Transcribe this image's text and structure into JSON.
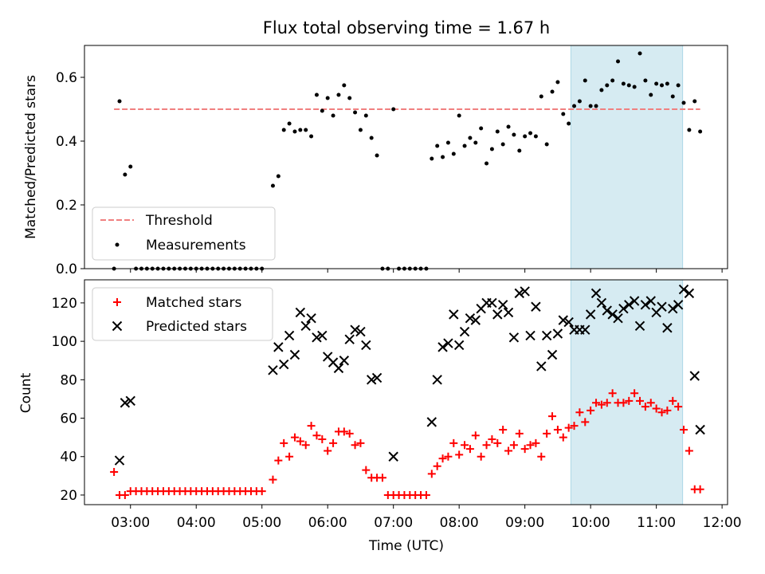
{
  "figure": {
    "title": "Flux total observing time = 1.67 h"
  },
  "colors": {
    "threshold": "#f08080",
    "measurement": "#000000",
    "matched": "#ff0000",
    "predicted": "#000000",
    "highlight": "#add8e6"
  },
  "chart_data": [
    {
      "type": "scatter",
      "ylabel": "Matched/Predicted stars",
      "ylim": [
        0,
        0.7
      ],
      "yticks": [
        "0.0",
        "0.2",
        "0.4",
        "0.6"
      ],
      "xlim": [
        "02:18",
        "12:05"
      ],
      "legend": {
        "placement": "lower-left",
        "entries": [
          "Threshold",
          "Measurements"
        ]
      },
      "highlight_range": [
        "09:42",
        "11:24"
      ],
      "series": [
        {
          "name": "Threshold",
          "kind": "dashed-line",
          "x": [
            "02:45",
            "11:40"
          ],
          "y": [
            0.5,
            0.5
          ]
        },
        {
          "name": "Measurements",
          "kind": "dots",
          "x": [
            "02:45",
            "02:50",
            "02:55",
            "03:00",
            "03:05",
            "03:10",
            "03:15",
            "03:20",
            "03:25",
            "03:30",
            "03:35",
            "03:40",
            "03:45",
            "03:50",
            "03:55",
            "04:00",
            "04:05",
            "04:10",
            "04:15",
            "04:20",
            "04:25",
            "04:30",
            "04:35",
            "04:40",
            "04:45",
            "04:50",
            "04:55",
            "05:00",
            "05:10",
            "05:15",
            "05:20",
            "05:25",
            "05:30",
            "05:35",
            "05:40",
            "05:45",
            "05:50",
            "05:55",
            "06:00",
            "06:05",
            "06:10",
            "06:15",
            "06:20",
            "06:25",
            "06:30",
            "06:35",
            "06:40",
            "06:45",
            "06:50",
            "06:55",
            "07:00",
            "07:05",
            "07:10",
            "07:15",
            "07:20",
            "07:25",
            "07:30",
            "07:35",
            "07:40",
            "07:45",
            "07:50",
            "07:55",
            "08:00",
            "08:05",
            "08:10",
            "08:15",
            "08:20",
            "08:25",
            "08:30",
            "08:35",
            "08:40",
            "08:45",
            "08:50",
            "08:55",
            "09:00",
            "09:05",
            "09:10",
            "09:15",
            "09:20",
            "09:25",
            "09:30",
            "09:35",
            "09:40",
            "09:45",
            "09:50",
            "09:55",
            "10:00",
            "10:05",
            "10:10",
            "10:15",
            "10:20",
            "10:25",
            "10:30",
            "10:35",
            "10:40",
            "10:45",
            "10:50",
            "10:55",
            "11:00",
            "11:05",
            "11:10",
            "11:15",
            "11:20",
            "11:25",
            "11:30",
            "11:35",
            "11:40"
          ],
          "y": [
            0,
            0.525,
            0.295,
            0.32,
            0,
            0,
            0,
            0,
            0,
            0,
            0,
            0,
            0,
            0,
            0,
            0,
            0,
            0,
            0,
            0,
            0,
            0,
            0,
            0,
            0,
            0,
            0,
            0,
            0.26,
            0.29,
            0.435,
            0.455,
            0.43,
            0.435,
            0.435,
            0.415,
            0.545,
            0.495,
            0.535,
            0.48,
            0.545,
            0.575,
            0.535,
            0.49,
            0.435,
            0.48,
            0.41,
            0.355,
            0,
            0,
            0.5,
            0,
            0,
            0,
            0,
            0,
            0,
            0.345,
            0.385,
            0.35,
            0.395,
            0.36,
            0.48,
            0.385,
            0.41,
            0.395,
            0.44,
            0.33,
            0.375,
            0.43,
            0.39,
            0.445,
            0.42,
            0.37,
            0.415,
            0.425,
            0.415,
            0.54,
            0.39,
            0.555,
            0.585,
            0.485,
            0.455,
            0.51,
            0.525,
            0.59,
            0.51,
            0.51,
            0.56,
            0.575,
            0.59,
            0.65,
            0.58,
            0.575,
            0.57,
            0.675,
            0.59,
            0.545,
            0.58,
            0.575,
            0.58,
            0.54,
            0.575,
            0.52,
            0.435,
            0.525,
            0.43
          ]
        }
      ]
    },
    {
      "type": "scatter",
      "ylabel": "Count",
      "xlabel": "Time (UTC)",
      "ylim": [
        15,
        132
      ],
      "yticks": [
        "20",
        "40",
        "60",
        "80",
        "100",
        "120"
      ],
      "xlim": [
        "02:18",
        "12:05"
      ],
      "xticks": [
        "03:00",
        "04:00",
        "05:00",
        "06:00",
        "07:00",
        "08:00",
        "09:00",
        "10:00",
        "11:00",
        "12:00"
      ],
      "legend": {
        "placement": "upper-left",
        "entries": [
          "Matched stars",
          "Predicted stars"
        ]
      },
      "highlight_range": [
        "09:42",
        "11:24"
      ],
      "series": [
        {
          "name": "Matched stars",
          "kind": "plus",
          "x": [
            "02:45",
            "02:50",
            "02:55",
            "03:00",
            "03:05",
            "03:10",
            "03:15",
            "03:20",
            "03:25",
            "03:30",
            "03:35",
            "03:40",
            "03:45",
            "03:50",
            "03:55",
            "04:00",
            "04:05",
            "04:10",
            "04:15",
            "04:20",
            "04:25",
            "04:30",
            "04:35",
            "04:40",
            "04:45",
            "04:50",
            "04:55",
            "05:00",
            "05:10",
            "05:15",
            "05:20",
            "05:25",
            "05:30",
            "05:35",
            "05:40",
            "05:45",
            "05:50",
            "05:55",
            "06:00",
            "06:05",
            "06:10",
            "06:15",
            "06:20",
            "06:25",
            "06:30",
            "06:35",
            "06:40",
            "06:45",
            "06:50",
            "06:55",
            "07:00",
            "07:05",
            "07:10",
            "07:15",
            "07:20",
            "07:25",
            "07:30",
            "07:35",
            "07:40",
            "07:45",
            "07:50",
            "07:55",
            "08:00",
            "08:05",
            "08:10",
            "08:15",
            "08:20",
            "08:25",
            "08:30",
            "08:35",
            "08:40",
            "08:45",
            "08:50",
            "08:55",
            "09:00",
            "09:05",
            "09:10",
            "09:15",
            "09:20",
            "09:25",
            "09:30",
            "09:35",
            "09:40",
            "09:45",
            "09:50",
            "09:55",
            "10:00",
            "10:05",
            "10:10",
            "10:15",
            "10:20",
            "10:25",
            "10:30",
            "10:35",
            "10:40",
            "10:45",
            "10:50",
            "10:55",
            "11:00",
            "11:05",
            "11:10",
            "11:15",
            "11:20",
            "11:25",
            "11:30",
            "11:35",
            "11:40"
          ],
          "y": [
            32,
            20,
            20,
            22,
            22,
            22,
            22,
            22,
            22,
            22,
            22,
            22,
            22,
            22,
            22,
            22,
            22,
            22,
            22,
            22,
            22,
            22,
            22,
            22,
            22,
            22,
            22,
            22,
            28,
            38,
            47,
            40,
            50,
            48,
            46,
            56,
            51,
            49,
            43,
            47,
            53,
            53,
            52,
            46,
            47,
            33,
            29,
            29,
            29,
            20,
            20,
            20,
            20,
            20,
            20,
            20,
            20,
            31,
            35,
            39,
            40,
            47,
            41,
            46,
            44,
            51,
            40,
            46,
            49,
            47,
            54,
            43,
            46,
            52,
            44,
            46,
            47,
            40,
            52,
            61,
            54,
            50,
            55,
            56,
            63,
            58,
            64,
            68,
            67,
            68,
            73,
            68,
            68,
            69,
            73,
            69,
            66,
            68,
            65,
            63,
            64,
            69,
            66,
            54,
            43,
            23,
            23
          ],
          "comment_last_points_x_override": [
            "11:35",
            "11:40"
          ]
        },
        {
          "name": "Predicted stars",
          "kind": "x",
          "x": [
            "02:50",
            "02:55",
            "03:00",
            "05:10",
            "05:15",
            "05:20",
            "05:25",
            "05:30",
            "05:35",
            "05:40",
            "05:45",
            "05:50",
            "05:55",
            "06:00",
            "06:05",
            "06:10",
            "06:15",
            "06:20",
            "06:25",
            "06:30",
            "06:35",
            "06:40",
            "06:45",
            "07:00",
            "07:35",
            "07:40",
            "07:45",
            "07:50",
            "07:55",
            "08:00",
            "08:05",
            "08:10",
            "08:15",
            "08:20",
            "08:25",
            "08:30",
            "08:35",
            "08:40",
            "08:45",
            "08:50",
            "08:55",
            "09:00",
            "09:05",
            "09:10",
            "09:15",
            "09:20",
            "09:25",
            "09:30",
            "09:35",
            "09:40",
            "09:45",
            "09:50",
            "09:55",
            "10:00",
            "10:05",
            "10:10",
            "10:15",
            "10:20",
            "10:25",
            "10:30",
            "10:35",
            "10:40",
            "10:45",
            "10:50",
            "10:55",
            "11:00",
            "11:05",
            "11:10",
            "11:15",
            "11:20",
            "11:25",
            "11:30",
            "11:35",
            "11:40"
          ],
          "y": [
            38,
            68,
            69,
            85,
            97,
            88,
            103,
            93,
            115,
            108,
            112,
            102,
            103,
            92,
            89,
            86,
            90,
            101,
            106,
            105,
            98,
            80,
            81,
            40,
            58,
            80,
            97,
            99,
            114,
            98,
            105,
            112,
            111,
            117,
            120,
            120,
            114,
            119,
            115,
            102,
            125,
            126,
            103,
            118,
            87,
            103,
            93,
            104,
            111,
            110,
            106,
            106,
            106,
            114,
            125,
            120,
            116,
            114,
            112,
            117,
            119,
            121,
            108,
            119,
            121,
            115,
            118,
            107,
            117,
            119,
            127,
            125,
            82,
            54
          ]
        }
      ]
    }
  ]
}
